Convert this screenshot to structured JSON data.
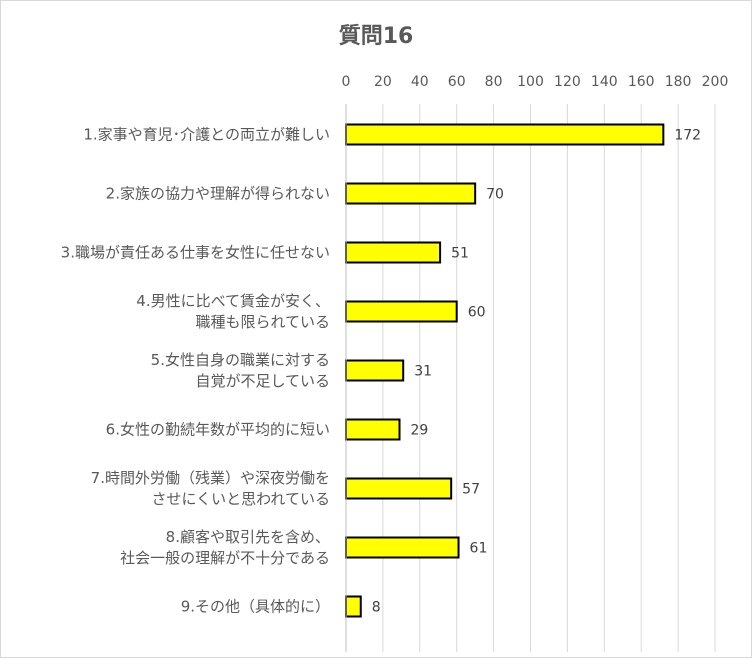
{
  "chart_data": {
    "type": "bar",
    "orientation": "horizontal",
    "title": "質問16",
    "xlabel": "",
    "ylabel": "",
    "xlim": [
      0,
      200
    ],
    "ticks": [
      0,
      20,
      40,
      60,
      80,
      100,
      120,
      140,
      160,
      180,
      200
    ],
    "grid": true,
    "bar_color": "#FFFF00",
    "bar_edge_color": "#000000",
    "categories": [
      [
        "1.家事や育児･介護との両立が難しい"
      ],
      [
        "2.家族の協力や理解が得られない"
      ],
      [
        "3.職場が責任ある仕事を女性に任せない"
      ],
      [
        "4.男性に比べて賃金が安く、",
        "職種も限られている"
      ],
      [
        "5.女性自身の職業に対する",
        "自覚が不足している"
      ],
      [
        "6.女性の勤続年数が平均的に短い"
      ],
      [
        "7.時間外労働（残業）や深夜労働を",
        "させにくいと思われている"
      ],
      [
        "8.顧客や取引先を含め、",
        "社会一般の理解が不十分である"
      ],
      [
        "9.その他（具体的に）"
      ]
    ],
    "values": [
      172,
      70,
      51,
      60,
      31,
      29,
      57,
      61,
      8
    ]
  }
}
